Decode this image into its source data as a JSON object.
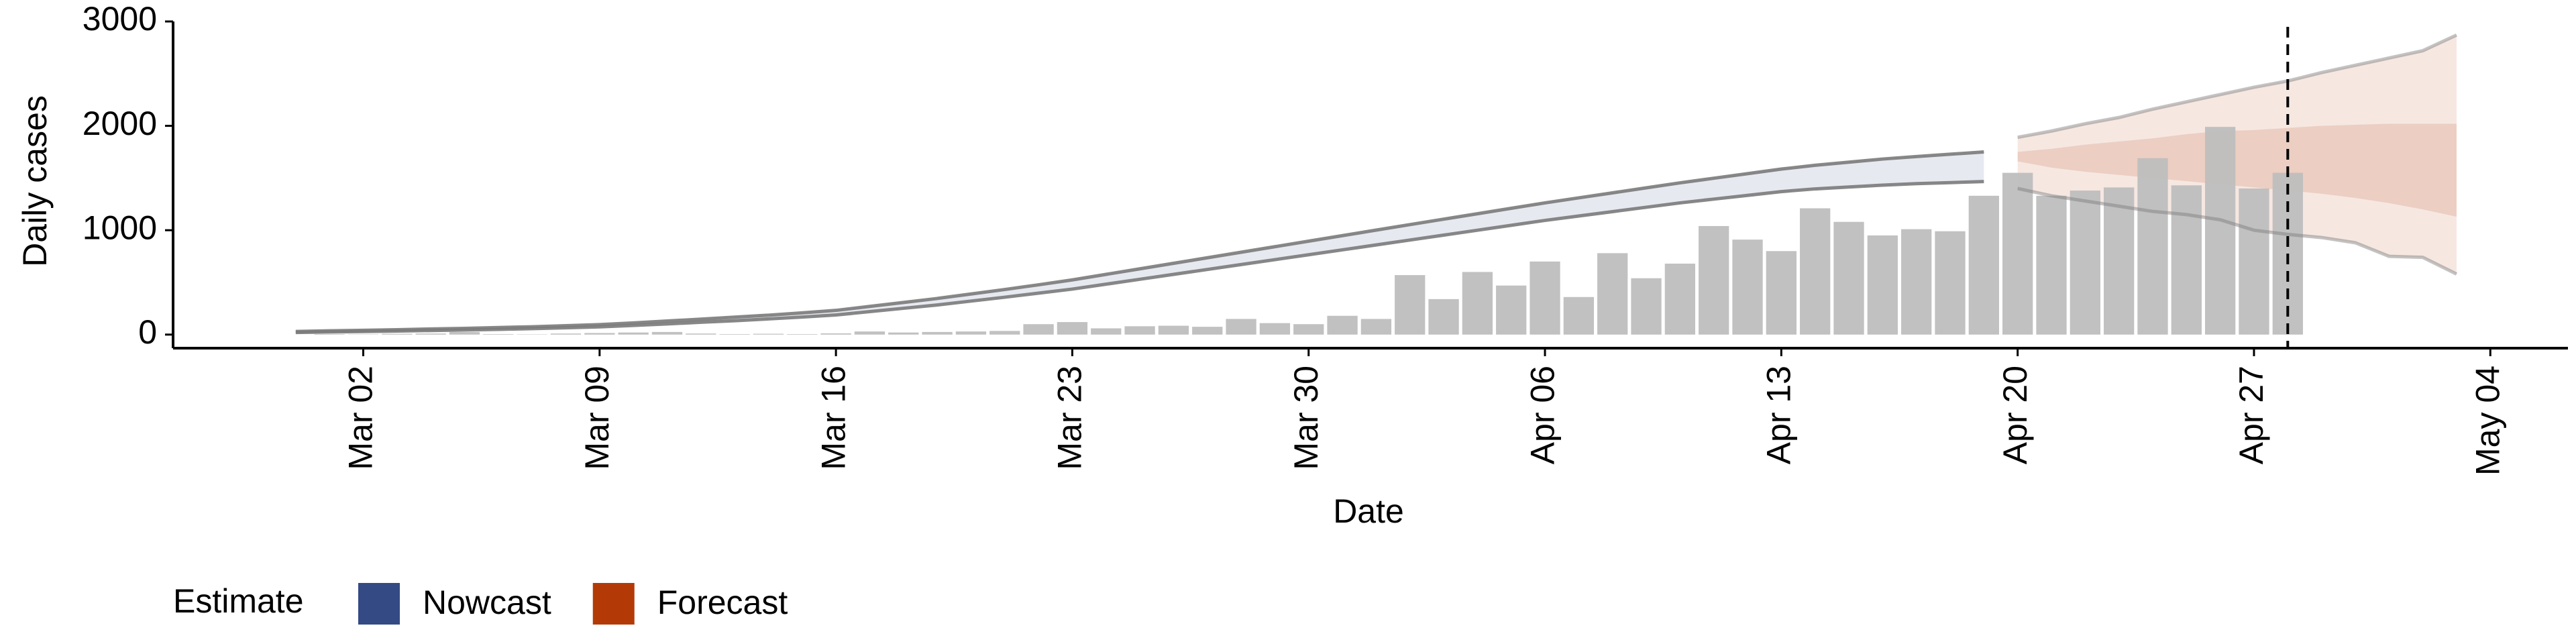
{
  "chart_data": {
    "type": "band",
    "x_label": "Date",
    "y_label": "Daily cases",
    "legend_title": "Estimate",
    "categories": [
      "Feb 29",
      "Mar 01",
      "Mar 02",
      "Mar 03",
      "Mar 04",
      "Mar 05",
      "Mar 06",
      "Mar 07",
      "Mar 08",
      "Mar 09",
      "Mar 10",
      "Mar 11",
      "Mar 12",
      "Mar 13",
      "Mar 14",
      "Mar 15",
      "Mar 16",
      "Mar 17",
      "Mar 18",
      "Mar 19",
      "Mar 20",
      "Mar 21",
      "Mar 22",
      "Mar 23",
      "Mar 24",
      "Mar 25",
      "Mar 26",
      "Mar 27",
      "Mar 28",
      "Mar 29",
      "Mar 30",
      "Mar 31",
      "Apr 01",
      "Apr 02",
      "Apr 03",
      "Apr 04",
      "Apr 05",
      "Apr 06",
      "Apr 07",
      "Apr 08",
      "Apr 09",
      "Apr 10",
      "Apr 11",
      "Apr 12",
      "Apr 13",
      "Apr 14",
      "Apr 15",
      "Apr 16",
      "Apr 17",
      "Apr 18",
      "Apr 19",
      "Apr 20",
      "Apr 21",
      "Apr 22",
      "Apr 23",
      "Apr 24",
      "Apr 25",
      "Apr 26",
      "Apr 27",
      "Apr 28",
      "Apr 29",
      "Apr 30",
      "May 01",
      "May 02",
      "May 03",
      "May 04"
    ],
    "xticks": [
      "Mar 02",
      "Mar 09",
      "Mar 16",
      "Mar 23",
      "Mar 30",
      "Apr 06",
      "Apr 13",
      "Apr 20",
      "Apr 27",
      "May 04"
    ],
    "ylim": [
      -130,
      3000
    ],
    "yticks": [
      0,
      1000,
      2000,
      3000
    ],
    "values": [
      null,
      5,
      3,
      8,
      10,
      25,
      5,
      3,
      10,
      15,
      20,
      25,
      10,
      5,
      8,
      5,
      12,
      30,
      20,
      25,
      30,
      35,
      100,
      120,
      60,
      80,
      85,
      75,
      150,
      110,
      100,
      180,
      150,
      570,
      340,
      600,
      470,
      700,
      360,
      780,
      540,
      680,
      1040,
      910,
      800,
      1210,
      1080,
      950,
      1010,
      990,
      1330,
      1550,
      1330,
      1380,
      1410,
      1690,
      1430,
      1990,
      1400,
      1550,
      null,
      null,
      null,
      null,
      null,
      null
    ],
    "color": "#bebebe",
    "vline": "Apr 28",
    "series": [
      {
        "name": "Nowcast",
        "color": "#334a85",
        "upper90": [
          30,
          36,
          41,
          47,
          54,
          60,
          68,
          75,
          85,
          96,
          112,
          130,
          148,
          167,
          186,
          208,
          232,
          270,
          308,
          346,
          389,
          432,
          477,
          524,
          577,
          630,
          683,
          736,
          789,
          842,
          895,
          948,
          1001,
          1054,
          1106,
          1158,
          1210,
          1262,
          1310,
          1358,
          1406,
          1454,
          1498,
          1542,
          1586,
          1622,
          1652,
          1682,
          1706,
          1728,
          1750,
          null,
          null,
          null,
          null,
          null,
          null,
          null,
          null,
          null,
          null,
          null,
          null,
          null,
          null,
          null
        ],
        "lower90": [
          20,
          25,
          29,
          34,
          39,
          44,
          50,
          57,
          65,
          74,
          88,
          102,
          118,
          133,
          150,
          168,
          188,
          220,
          252,
          284,
          321,
          358,
          397,
          436,
          483,
          530,
          577,
          624,
          671,
          718,
          765,
          812,
          859,
          906,
          953,
          1000,
          1047,
          1094,
          1136,
          1178,
          1220,
          1262,
          1298,
          1334,
          1370,
          1396,
          1414,
          1432,
          1446,
          1456,
          1466,
          null,
          null,
          null,
          null,
          null,
          null,
          null,
          null,
          null,
          null,
          null,
          null,
          null,
          null,
          null
        ]
      },
      {
        "name": "Forecast",
        "color": "#b33a07",
        "upper90": [
          null,
          null,
          null,
          null,
          null,
          null,
          null,
          null,
          null,
          null,
          null,
          null,
          null,
          null,
          null,
          null,
          null,
          null,
          null,
          null,
          null,
          null,
          null,
          null,
          null,
          null,
          null,
          null,
          null,
          null,
          null,
          null,
          null,
          null,
          null,
          null,
          null,
          null,
          null,
          null,
          null,
          null,
          null,
          null,
          null,
          null,
          null,
          null,
          null,
          null,
          null,
          1890,
          1950,
          2020,
          2080,
          2160,
          2230,
          2300,
          2370,
          2430,
          2510,
          2580,
          2650,
          2720,
          2870,
          null
        ],
        "lower90": [
          null,
          null,
          null,
          null,
          null,
          null,
          null,
          null,
          null,
          null,
          null,
          null,
          null,
          null,
          null,
          null,
          null,
          null,
          null,
          null,
          null,
          null,
          null,
          null,
          null,
          null,
          null,
          null,
          null,
          null,
          null,
          null,
          null,
          null,
          null,
          null,
          null,
          null,
          null,
          null,
          null,
          null,
          null,
          null,
          null,
          null,
          null,
          null,
          null,
          null,
          null,
          1400,
          1330,
          1280,
          1230,
          1180,
          1150,
          1100,
          1000,
          960,
          930,
          880,
          750,
          740,
          580,
          null
        ],
        "upper50": [
          null,
          null,
          null,
          null,
          null,
          null,
          null,
          null,
          null,
          null,
          null,
          null,
          null,
          null,
          null,
          null,
          null,
          null,
          null,
          null,
          null,
          null,
          null,
          null,
          null,
          null,
          null,
          null,
          null,
          null,
          null,
          null,
          null,
          null,
          null,
          null,
          null,
          null,
          null,
          null,
          null,
          null,
          null,
          null,
          null,
          null,
          null,
          null,
          null,
          null,
          null,
          1750,
          1780,
          1820,
          1850,
          1880,
          1920,
          1950,
          1960,
          1980,
          2000,
          2010,
          2020,
          2020,
          2020,
          null
        ],
        "lower50": [
          null,
          null,
          null,
          null,
          null,
          null,
          null,
          null,
          null,
          null,
          null,
          null,
          null,
          null,
          null,
          null,
          null,
          null,
          null,
          null,
          null,
          null,
          null,
          null,
          null,
          null,
          null,
          null,
          null,
          null,
          null,
          null,
          null,
          null,
          null,
          null,
          null,
          null,
          null,
          null,
          null,
          null,
          null,
          null,
          null,
          null,
          null,
          null,
          null,
          null,
          null,
          1660,
          1600,
          1560,
          1530,
          1500,
          1470,
          1440,
          1410,
          1380,
          1350,
          1310,
          1260,
          1200,
          1130,
          null
        ]
      }
    ]
  }
}
